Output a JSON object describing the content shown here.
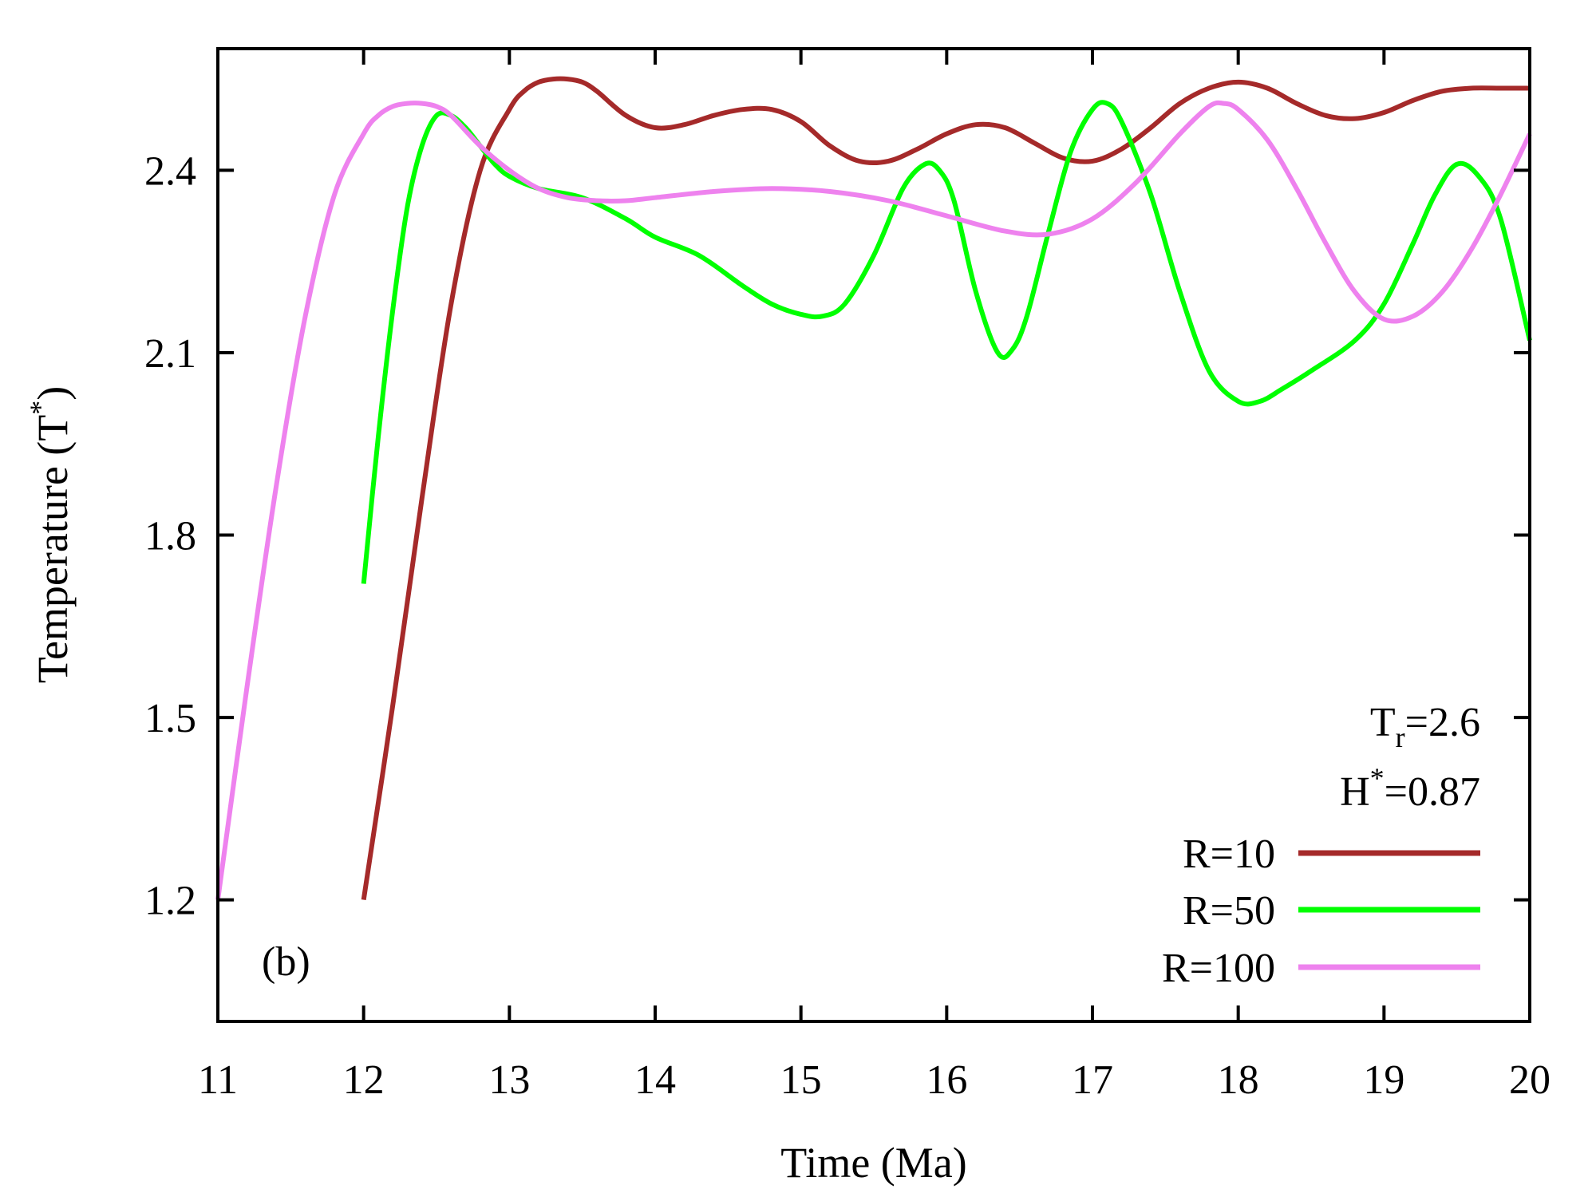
{
  "chart_data": {
    "type": "line",
    "panel_label": "(b)",
    "xlabel": "Time (Ma)",
    "ylabel_main": "Temperature (T",
    "ylabel_sup": "*",
    "ylabel_close": ")",
    "xlim": [
      11,
      20
    ],
    "ylim": [
      1.0,
      2.6
    ],
    "xticks": [
      11,
      12,
      13,
      14,
      15,
      16,
      17,
      18,
      19,
      20
    ],
    "xtick_labels": [
      "11",
      "12",
      "13",
      "14",
      "15",
      "16",
      "17",
      "18",
      "19",
      "20"
    ],
    "yticks": [
      1.2,
      1.5,
      1.8,
      2.1,
      2.4
    ],
    "ytick_labels": [
      "1.2",
      "1.5",
      "1.8",
      "2.1",
      "2.4"
    ],
    "grid": false,
    "legend_position": "bottom-right",
    "annotation": {
      "tr_main": "T",
      "tr_sub": "r",
      "tr_value": "=2.6",
      "h_main": "H",
      "h_sup": "*",
      "h_value": "=0.87"
    },
    "series": [
      {
        "name": "R=10",
        "color": "#a52a2a",
        "x": [
          12.0,
          12.2,
          12.4,
          12.6,
          12.8,
          13.0,
          13.1,
          13.2,
          13.3,
          13.4,
          13.5,
          13.6,
          13.8,
          14.0,
          14.2,
          14.4,
          14.6,
          14.8,
          15.0,
          15.2,
          15.4,
          15.6,
          15.8,
          16.0,
          16.2,
          16.4,
          16.6,
          16.8,
          17.0,
          17.2,
          17.4,
          17.6,
          17.8,
          18.0,
          18.2,
          18.4,
          18.6,
          18.8,
          19.0,
          19.2,
          19.4,
          19.6,
          19.8,
          20.0
        ],
        "y": [
          1.2,
          1.52,
          1.86,
          2.18,
          2.4,
          2.5,
          2.53,
          2.545,
          2.55,
          2.55,
          2.545,
          2.53,
          2.49,
          2.47,
          2.475,
          2.49,
          2.5,
          2.5,
          2.48,
          2.44,
          2.415,
          2.415,
          2.435,
          2.46,
          2.475,
          2.47,
          2.445,
          2.42,
          2.415,
          2.435,
          2.47,
          2.51,
          2.535,
          2.545,
          2.535,
          2.51,
          2.49,
          2.485,
          2.495,
          2.515,
          2.53,
          2.535,
          2.535,
          2.535
        ]
      },
      {
        "name": "R=50",
        "color": "#00ff00",
        "x": [
          12.0,
          12.1,
          12.2,
          12.3,
          12.4,
          12.5,
          12.6,
          12.7,
          12.8,
          12.9,
          13.0,
          13.2,
          13.5,
          13.8,
          14.0,
          14.3,
          14.6,
          14.8,
          15.0,
          15.15,
          15.3,
          15.5,
          15.7,
          15.85,
          15.95,
          16.05,
          16.2,
          16.35,
          16.45,
          16.55,
          16.7,
          16.85,
          17.0,
          17.1,
          17.2,
          17.4,
          17.6,
          17.8,
          18.0,
          18.15,
          18.3,
          18.5,
          18.8,
          19.0,
          19.2,
          19.35,
          19.5,
          19.65,
          19.8,
          20.0
        ],
        "y": [
          1.72,
          1.96,
          2.17,
          2.34,
          2.44,
          2.49,
          2.49,
          2.47,
          2.44,
          2.41,
          2.39,
          2.37,
          2.355,
          2.32,
          2.29,
          2.26,
          2.21,
          2.18,
          2.163,
          2.16,
          2.18,
          2.26,
          2.37,
          2.41,
          2.4,
          2.35,
          2.2,
          2.1,
          2.105,
          2.16,
          2.3,
          2.43,
          2.5,
          2.51,
          2.48,
          2.36,
          2.2,
          2.07,
          2.02,
          2.02,
          2.04,
          2.07,
          2.12,
          2.18,
          2.28,
          2.36,
          2.41,
          2.39,
          2.32,
          2.12
        ]
      },
      {
        "name": "R=100",
        "color": "#ee82ee",
        "x": [
          11.0,
          11.2,
          11.4,
          11.6,
          11.8,
          12.0,
          12.1,
          12.2,
          12.3,
          12.4,
          12.5,
          12.6,
          12.8,
          13.0,
          13.2,
          13.4,
          13.6,
          13.8,
          14.0,
          14.4,
          14.8,
          15.2,
          15.6,
          16.0,
          16.4,
          16.7,
          17.0,
          17.3,
          17.6,
          17.8,
          17.9,
          18.0,
          18.2,
          18.4,
          18.6,
          18.8,
          19.0,
          19.2,
          19.4,
          19.6,
          19.8,
          20.0
        ],
        "y": [
          1.2,
          1.55,
          1.88,
          2.16,
          2.36,
          2.46,
          2.49,
          2.505,
          2.51,
          2.51,
          2.505,
          2.49,
          2.44,
          2.4,
          2.37,
          2.355,
          2.35,
          2.35,
          2.355,
          2.365,
          2.37,
          2.365,
          2.35,
          2.325,
          2.3,
          2.295,
          2.32,
          2.38,
          2.46,
          2.505,
          2.51,
          2.5,
          2.45,
          2.37,
          2.28,
          2.2,
          2.155,
          2.16,
          2.2,
          2.27,
          2.36,
          2.46
        ]
      }
    ]
  }
}
